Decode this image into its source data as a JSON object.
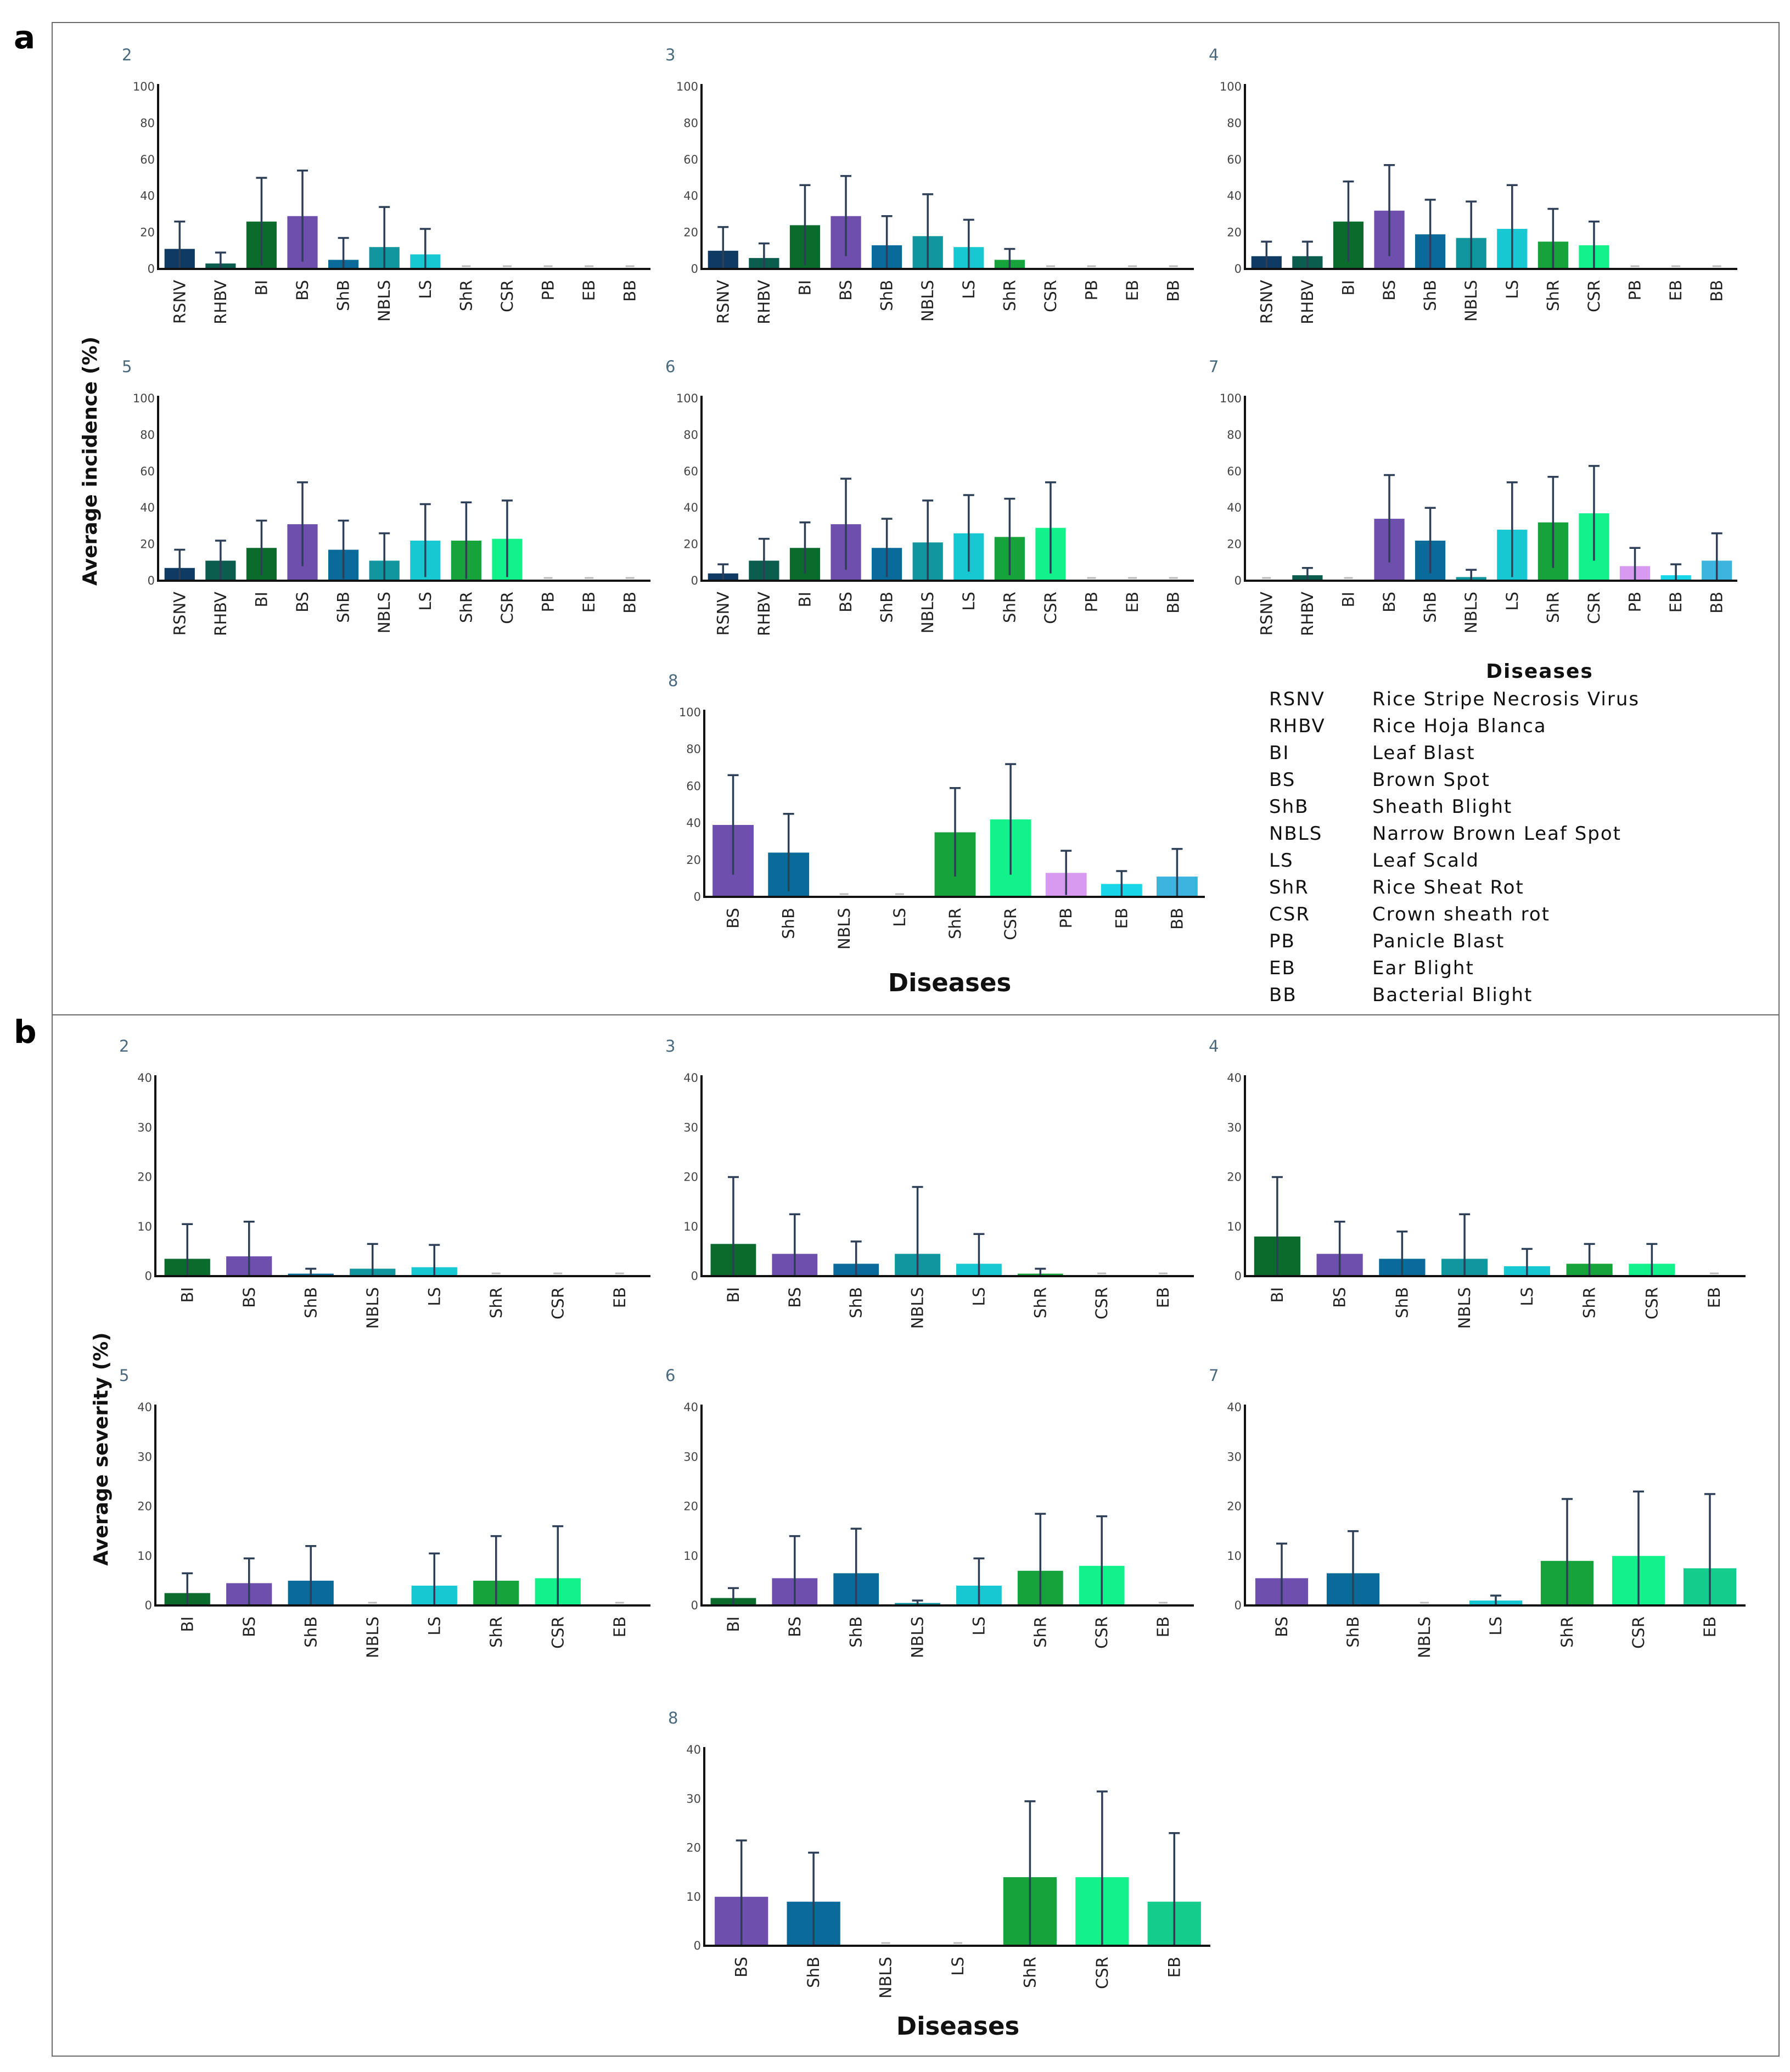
{
  "colors": {
    "RSNV": "#0f3a63",
    "RHBV": "#0b5e4e",
    "BI": "#0b6b2c",
    "BS": "#6e4fad",
    "ShB": "#0a6b9a",
    "NBLS": "#11969f",
    "LS": "#17c8d3",
    "ShR": "#16a33b",
    "CSR": "#12f28a",
    "PB": "#d79af0",
    "EB": "#18d6e8",
    "BB": "#3db4e0",
    "EB_severity": "#14cc8c",
    "error_bar": "#2d3f57"
  },
  "panel_a": {
    "label": "a",
    "y_title": "Average incidence (%)",
    "x_title": "Diseases",
    "legend": {
      "title": "Diseases",
      "items": [
        {
          "abbr": "RSNV",
          "name": "Rice Stripe Necrosis Virus"
        },
        {
          "abbr": "RHBV",
          "name": "Rice Hoja Blanca"
        },
        {
          "abbr": "BI",
          "name": "Leaf Blast"
        },
        {
          "abbr": "BS",
          "name": "Brown Spot"
        },
        {
          "abbr": "ShB",
          "name": "Sheath Blight"
        },
        {
          "abbr": "NBLS",
          "name": "Narrow Brown Leaf Spot"
        },
        {
          "abbr": "LS",
          "name": "Leaf Scald"
        },
        {
          "abbr": "ShR",
          "name": "Rice Sheat Rot"
        },
        {
          "abbr": "CSR",
          "name": "Crown sheath rot"
        },
        {
          "abbr": "PB",
          "name": "Panicle Blast"
        },
        {
          "abbr": "EB",
          "name": "Ear Blight"
        },
        {
          "abbr": "BB",
          "name": "Bacterial Blight"
        }
      ]
    }
  },
  "panel_b": {
    "label": "b",
    "y_title": "Average severity (%)",
    "x_title": "Diseases"
  },
  "chart_data": [
    {
      "type": "bar",
      "panel": "a",
      "title": "2",
      "ylim": [
        0,
        100
      ],
      "yticks": [
        0,
        20,
        40,
        60,
        80,
        100
      ],
      "categories": [
        "RSNV",
        "RHBV",
        "BI",
        "BS",
        "ShB",
        "NBLS",
        "LS",
        "ShR",
        "CSR",
        "PB",
        "EB",
        "BB"
      ],
      "values": [
        11,
        3,
        26,
        29,
        5,
        12,
        8,
        0,
        0,
        0,
        0,
        0
      ],
      "errors": [
        15,
        6,
        24,
        25,
        12,
        22,
        14,
        0,
        0,
        0,
        0,
        0
      ]
    },
    {
      "type": "bar",
      "panel": "a",
      "title": "3",
      "ylim": [
        0,
        100
      ],
      "yticks": [
        0,
        20,
        40,
        60,
        80,
        100
      ],
      "categories": [
        "RSNV",
        "RHBV",
        "BI",
        "BS",
        "ShB",
        "NBLS",
        "LS",
        "ShR",
        "CSR",
        "PB",
        "EB",
        "BB"
      ],
      "values": [
        10,
        6,
        24,
        29,
        13,
        18,
        12,
        5,
        0,
        0,
        0,
        0
      ],
      "errors": [
        13,
        8,
        22,
        22,
        16,
        23,
        15,
        6,
        0,
        0,
        0,
        0
      ]
    },
    {
      "type": "bar",
      "panel": "a",
      "title": "4",
      "ylim": [
        0,
        100
      ],
      "yticks": [
        0,
        20,
        40,
        60,
        80,
        100
      ],
      "categories": [
        "RSNV",
        "RHBV",
        "BI",
        "BS",
        "ShB",
        "NBLS",
        "LS",
        "ShR",
        "CSR",
        "PB",
        "EB",
        "BB"
      ],
      "values": [
        7,
        7,
        26,
        32,
        19,
        17,
        22,
        15,
        13,
        0,
        0,
        0
      ],
      "errors": [
        8,
        8,
        22,
        25,
        19,
        20,
        24,
        18,
        13,
        0,
        0,
        0
      ]
    },
    {
      "type": "bar",
      "panel": "a",
      "title": "5",
      "ylim": [
        0,
        100
      ],
      "yticks": [
        0,
        20,
        40,
        60,
        80,
        100
      ],
      "categories": [
        "RSNV",
        "RHBV",
        "BI",
        "BS",
        "ShB",
        "NBLS",
        "LS",
        "ShR",
        "CSR",
        "PB",
        "EB",
        "BB"
      ],
      "values": [
        7,
        11,
        18,
        31,
        17,
        11,
        22,
        22,
        23,
        0,
        0,
        0
      ],
      "errors": [
        10,
        11,
        15,
        23,
        16,
        15,
        20,
        21,
        21,
        0,
        0,
        0
      ]
    },
    {
      "type": "bar",
      "panel": "a",
      "title": "6",
      "ylim": [
        0,
        100
      ],
      "yticks": [
        0,
        20,
        40,
        60,
        80,
        100
      ],
      "categories": [
        "RSNV",
        "RHBV",
        "BI",
        "BS",
        "ShB",
        "NBLS",
        "LS",
        "ShR",
        "CSR",
        "PB",
        "EB",
        "BB"
      ],
      "values": [
        4,
        11,
        18,
        31,
        18,
        21,
        26,
        24,
        29,
        0,
        0,
        0
      ],
      "errors": [
        5,
        12,
        14,
        25,
        16,
        23,
        21,
        21,
        25,
        0,
        0,
        0
      ]
    },
    {
      "type": "bar",
      "panel": "a",
      "title": "7",
      "ylim": [
        0,
        100
      ],
      "yticks": [
        0,
        20,
        40,
        60,
        80,
        100
      ],
      "categories": [
        "RSNV",
        "RHBV",
        "BI",
        "BS",
        "ShB",
        "NBLS",
        "LS",
        "ShR",
        "CSR",
        "PB",
        "EB",
        "BB"
      ],
      "values": [
        0,
        3,
        0,
        34,
        22,
        2,
        28,
        32,
        37,
        8,
        3,
        11
      ],
      "errors": [
        0,
        4,
        0,
        24,
        18,
        4,
        26,
        25,
        26,
        10,
        6,
        15
      ]
    },
    {
      "type": "bar",
      "panel": "a",
      "title": "8",
      "ylim": [
        0,
        100
      ],
      "yticks": [
        0,
        20,
        40,
        60,
        80,
        100
      ],
      "categories": [
        "BS",
        "ShB",
        "NBLS",
        "LS",
        "ShR",
        "CSR",
        "PB",
        "EB",
        "BB"
      ],
      "values": [
        39,
        24,
        0,
        0,
        35,
        42,
        13,
        7,
        11
      ],
      "errors": [
        27,
        21,
        0,
        0,
        24,
        30,
        12,
        7,
        15
      ]
    },
    {
      "type": "bar",
      "panel": "b",
      "title": "2",
      "ylim": [
        0,
        40
      ],
      "yticks": [
        0,
        10,
        20,
        30,
        40
      ],
      "categories": [
        "BI",
        "BS",
        "ShB",
        "NBLS",
        "LS",
        "ShR",
        "CSR",
        "EB"
      ],
      "values": [
        3.5,
        4,
        0.5,
        1.5,
        1.8,
        0,
        0,
        0
      ],
      "errors": [
        7,
        7,
        1,
        5,
        4.5,
        0,
        0,
        0
      ]
    },
    {
      "type": "bar",
      "panel": "b",
      "title": "3",
      "ylim": [
        0,
        40
      ],
      "yticks": [
        0,
        10,
        20,
        30,
        40
      ],
      "categories": [
        "BI",
        "BS",
        "ShB",
        "NBLS",
        "LS",
        "ShR",
        "CSR",
        "EB"
      ],
      "values": [
        6.5,
        4.5,
        2.5,
        4.5,
        2.5,
        0.5,
        0,
        0
      ],
      "errors": [
        13.5,
        8,
        4.5,
        13.5,
        6,
        1,
        0,
        0
      ]
    },
    {
      "type": "bar",
      "panel": "b",
      "title": "4",
      "ylim": [
        0,
        40
      ],
      "yticks": [
        0,
        10,
        20,
        30,
        40
      ],
      "categories": [
        "BI",
        "BS",
        "ShB",
        "NBLS",
        "LS",
        "ShR",
        "CSR",
        "EB"
      ],
      "values": [
        8,
        4.5,
        3.5,
        3.5,
        2,
        2.5,
        2.5,
        0
      ],
      "errors": [
        12,
        6.5,
        5.5,
        9,
        3.5,
        4,
        4,
        0
      ]
    },
    {
      "type": "bar",
      "panel": "b",
      "title": "5",
      "ylim": [
        0,
        40
      ],
      "yticks": [
        0,
        10,
        20,
        30,
        40
      ],
      "categories": [
        "BI",
        "BS",
        "ShB",
        "NBLS",
        "LS",
        "ShR",
        "CSR",
        "EB"
      ],
      "values": [
        2.5,
        4.5,
        5,
        0,
        4,
        5,
        5.5,
        0
      ],
      "errors": [
        4,
        5,
        7,
        0,
        6.5,
        9,
        10.5,
        0
      ]
    },
    {
      "type": "bar",
      "panel": "b",
      "title": "6",
      "ylim": [
        0,
        40
      ],
      "yticks": [
        0,
        10,
        20,
        30,
        40
      ],
      "categories": [
        "BI",
        "BS",
        "ShB",
        "NBLS",
        "LS",
        "ShR",
        "CSR",
        "EB"
      ],
      "values": [
        1.5,
        5.5,
        6.5,
        0.5,
        4,
        7,
        8,
        0
      ],
      "errors": [
        2,
        8.5,
        9,
        0.5,
        5.5,
        11.5,
        10,
        0
      ]
    },
    {
      "type": "bar",
      "panel": "b",
      "title": "7",
      "ylim": [
        0,
        40
      ],
      "yticks": [
        0,
        10,
        20,
        30,
        40
      ],
      "categories": [
        "BS",
        "ShB",
        "NBLS",
        "LS",
        "ShR",
        "CSR",
        "EB"
      ],
      "values": [
        5.5,
        6.5,
        0,
        1,
        9,
        10,
        7.5
      ],
      "errors": [
        7,
        8.5,
        0,
        1,
        12.5,
        13,
        15
      ]
    },
    {
      "type": "bar",
      "panel": "b",
      "title": "8",
      "ylim": [
        0,
        40
      ],
      "yticks": [
        0,
        10,
        20,
        30,
        40
      ],
      "categories": [
        "BS",
        "ShB",
        "NBLS",
        "LS",
        "ShR",
        "CSR",
        "EB"
      ],
      "values": [
        10,
        9,
        0,
        0,
        14,
        14,
        9
      ],
      "errors": [
        11.5,
        10,
        0,
        0,
        15.5,
        17.5,
        14
      ]
    }
  ]
}
